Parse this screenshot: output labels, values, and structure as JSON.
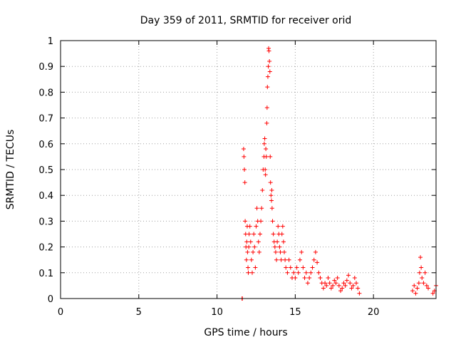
{
  "chart_data": {
    "type": "scatter",
    "title": "Day 359 of 2011, SRMTID for receiver orid",
    "xlabel": "GPS time / hours",
    "ylabel": "SRMTID / TECUs",
    "xlim": [
      0,
      24
    ],
    "ylim": [
      0,
      1
    ],
    "xticks": [
      0,
      5,
      10,
      15,
      20
    ],
    "xtick_labels": [
      "0",
      "5",
      "10",
      "15",
      "20"
    ],
    "yticks": [
      0,
      0.1,
      0.2,
      0.3,
      0.4,
      0.5,
      0.6,
      0.7,
      0.8,
      0.9,
      1
    ],
    "ytick_labels": [
      "0",
      "0.1",
      "0.2",
      "0.3",
      "0.4",
      "0.5",
      "0.6",
      "0.7",
      "0.8",
      "0.9",
      "1"
    ],
    "grid": true,
    "marker": "+",
    "marker_color": "#ff0000",
    "series": [
      {
        "name": "SRMTID",
        "x": [
          11.7,
          11.72,
          11.75,
          11.78,
          11.8,
          11.83,
          11.85,
          11.88,
          11.9,
          11.93,
          11.95,
          11.98,
          12.0,
          12.03,
          12.05,
          12.1,
          12.15,
          12.2,
          12.25,
          12.3,
          12.35,
          12.4,
          12.45,
          12.5,
          12.55,
          12.6,
          12.65,
          12.7,
          12.75,
          12.8,
          12.85,
          12.9,
          12.95,
          13.0,
          13.02,
          13.05,
          13.08,
          13.1,
          13.12,
          13.15,
          13.18,
          13.2,
          13.22,
          13.25,
          13.28,
          13.3,
          13.32,
          13.35,
          13.38,
          13.4,
          13.42,
          13.45,
          13.48,
          13.5,
          13.52,
          13.55,
          13.6,
          13.65,
          13.7,
          13.75,
          13.8,
          13.85,
          13.9,
          13.95,
          14.0,
          14.05,
          14.1,
          14.15,
          14.2,
          14.25,
          14.3,
          14.35,
          14.4,
          14.5,
          14.6,
          14.7,
          14.8,
          14.9,
          15.0,
          15.1,
          15.2,
          15.3,
          15.4,
          15.5,
          15.6,
          15.7,
          15.8,
          15.9,
          16.0,
          16.1,
          16.2,
          16.3,
          16.4,
          16.5,
          16.6,
          16.7,
          16.8,
          16.9,
          17.0,
          17.1,
          17.2,
          17.3,
          17.4,
          17.5,
          17.6,
          17.7,
          17.8,
          17.9,
          18.0,
          18.1,
          18.2,
          18.3,
          18.4,
          18.5,
          18.6,
          18.7,
          18.8,
          18.9,
          19.0,
          19.1,
          11.6,
          11.62,
          22.5,
          22.6,
          22.7,
          22.8,
          22.9,
          22.95,
          23.0,
          23.05,
          23.1,
          23.2,
          23.3,
          23.4,
          23.5,
          23.8,
          23.9,
          24.0
        ],
        "y": [
          0.58,
          0.55,
          0.5,
          0.45,
          0.3,
          0.25,
          0.2,
          0.15,
          0.22,
          0.28,
          0.18,
          0.12,
          0.1,
          0.2,
          0.25,
          0.28,
          0.22,
          0.15,
          0.1,
          0.18,
          0.25,
          0.2,
          0.12,
          0.28,
          0.35,
          0.3,
          0.22,
          0.18,
          0.25,
          0.3,
          0.35,
          0.42,
          0.5,
          0.55,
          0.6,
          0.62,
          0.5,
          0.48,
          0.58,
          0.55,
          0.68,
          0.74,
          0.82,
          0.86,
          0.9,
          0.97,
          0.96,
          0.92,
          0.88,
          0.55,
          0.45,
          0.4,
          0.38,
          0.42,
          0.35,
          0.3,
          0.25,
          0.22,
          0.2,
          0.18,
          0.15,
          0.22,
          0.28,
          0.25,
          0.2,
          0.18,
          0.15,
          0.25,
          0.28,
          0.22,
          0.18,
          0.15,
          0.12,
          0.1,
          0.15,
          0.12,
          0.08,
          0.1,
          0.08,
          0.12,
          0.1,
          0.15,
          0.18,
          0.12,
          0.08,
          0.1,
          0.06,
          0.08,
          0.1,
          0.12,
          0.15,
          0.18,
          0.14,
          0.1,
          0.08,
          0.06,
          0.04,
          0.06,
          0.05,
          0.08,
          0.06,
          0.04,
          0.05,
          0.07,
          0.06,
          0.08,
          0.05,
          0.03,
          0.04,
          0.06,
          0.05,
          0.07,
          0.09,
          0.06,
          0.04,
          0.05,
          0.08,
          0.06,
          0.04,
          0.02,
          0.0,
          0.0,
          0.03,
          0.05,
          0.02,
          0.04,
          0.06,
          0.1,
          0.16,
          0.12,
          0.08,
          0.06,
          0.1,
          0.05,
          0.04,
          0.02,
          0.03,
          0.05
        ]
      }
    ]
  }
}
